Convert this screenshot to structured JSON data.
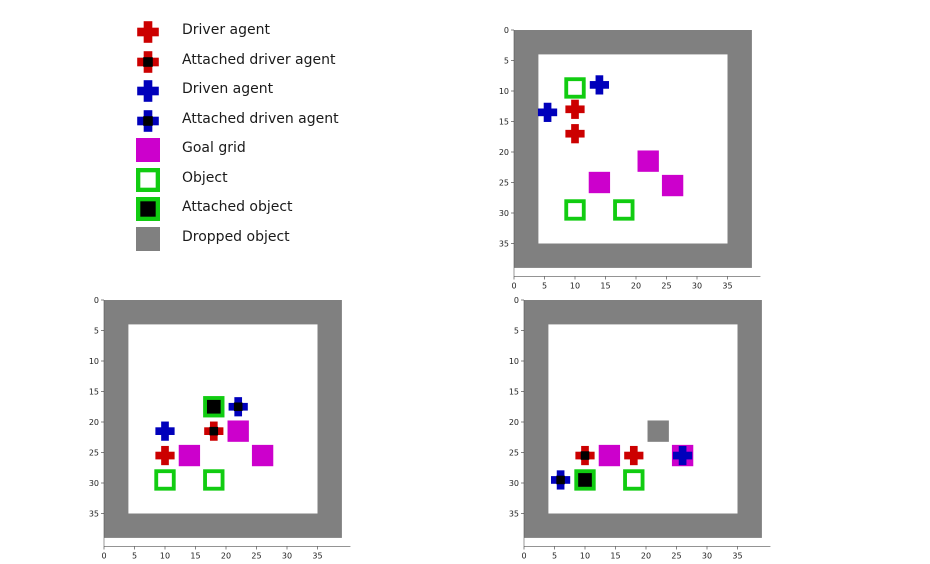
{
  "colors": {
    "driver": "#cc0000",
    "driven": "#0000bb",
    "goal": "#cc00cc",
    "object": "#11cc11",
    "dropped": "#808080",
    "attach_dot": "#000000",
    "wall": "#808080"
  },
  "legend": [
    {
      "icon": "driver-agent-icon",
      "kind": "driver",
      "label": "Driver agent"
    },
    {
      "icon": "attached-driver-agent-icon",
      "kind": "driver_attached",
      "label": "Attached driver agent"
    },
    {
      "icon": "driven-agent-icon",
      "kind": "driven",
      "label": "Driven agent"
    },
    {
      "icon": "attached-driven-agent-icon",
      "kind": "driven_attached",
      "label": "Attached driven agent"
    },
    {
      "icon": "goal-grid-icon",
      "kind": "goal",
      "label": "Goal grid"
    },
    {
      "icon": "object-icon",
      "kind": "object",
      "label": "Object"
    },
    {
      "icon": "attached-object-icon",
      "kind": "object_attached",
      "label": "Attached object"
    },
    {
      "icon": "dropped-object-icon",
      "kind": "dropped",
      "label": "Dropped object"
    }
  ],
  "grid": {
    "xlim": [
      0,
      40
    ],
    "ylim": [
      0,
      40
    ],
    "x_ticks": [
      0,
      5,
      10,
      15,
      20,
      25,
      30,
      35
    ],
    "y_ticks": [
      0,
      5,
      10,
      15,
      20,
      25,
      30,
      35
    ],
    "wall_thickness": 4,
    "inner_size": 32
  },
  "panels": [
    {
      "id": "top-right",
      "items": [
        {
          "kind": "object",
          "x": 10,
          "y": 9.5
        },
        {
          "kind": "driven",
          "x": 14,
          "y": 9
        },
        {
          "kind": "driver",
          "x": 10,
          "y": 13
        },
        {
          "kind": "driven",
          "x": 5.5,
          "y": 13.5
        },
        {
          "kind": "driver",
          "x": 10,
          "y": 17
        },
        {
          "kind": "goal",
          "x": 22,
          "y": 21.5
        },
        {
          "kind": "goal",
          "x": 14,
          "y": 25
        },
        {
          "kind": "goal",
          "x": 26,
          "y": 25.5
        },
        {
          "kind": "object",
          "x": 10,
          "y": 29.5
        },
        {
          "kind": "object",
          "x": 18,
          "y": 29.5
        }
      ]
    },
    {
      "id": "bottom-left",
      "items": [
        {
          "kind": "object_attached",
          "x": 18,
          "y": 17.5
        },
        {
          "kind": "driven_attached",
          "x": 22,
          "y": 17.5
        },
        {
          "kind": "driver_attached",
          "x": 18,
          "y": 21.5
        },
        {
          "kind": "goal",
          "x": 22,
          "y": 21.5
        },
        {
          "kind": "driven",
          "x": 10,
          "y": 21.5
        },
        {
          "kind": "driver",
          "x": 10,
          "y": 25.5
        },
        {
          "kind": "goal",
          "x": 14,
          "y": 25.5
        },
        {
          "kind": "goal",
          "x": 26,
          "y": 25.5
        },
        {
          "kind": "object",
          "x": 10,
          "y": 29.5
        },
        {
          "kind": "object",
          "x": 18,
          "y": 29.5
        }
      ]
    },
    {
      "id": "bottom-right",
      "items": [
        {
          "kind": "dropped",
          "x": 22,
          "y": 21.5
        },
        {
          "kind": "driver_attached",
          "x": 10,
          "y": 25.5
        },
        {
          "kind": "goal",
          "x": 14,
          "y": 25.5
        },
        {
          "kind": "driver",
          "x": 18,
          "y": 25.5
        },
        {
          "kind": "goal",
          "x": 26,
          "y": 25.5
        },
        {
          "kind": "driven",
          "x": 26,
          "y": 25.5
        },
        {
          "kind": "driven_attached",
          "x": 6,
          "y": 29.5
        },
        {
          "kind": "object_attached",
          "x": 10,
          "y": 29.5
        },
        {
          "kind": "object",
          "x": 18,
          "y": 29.5
        }
      ]
    }
  ]
}
